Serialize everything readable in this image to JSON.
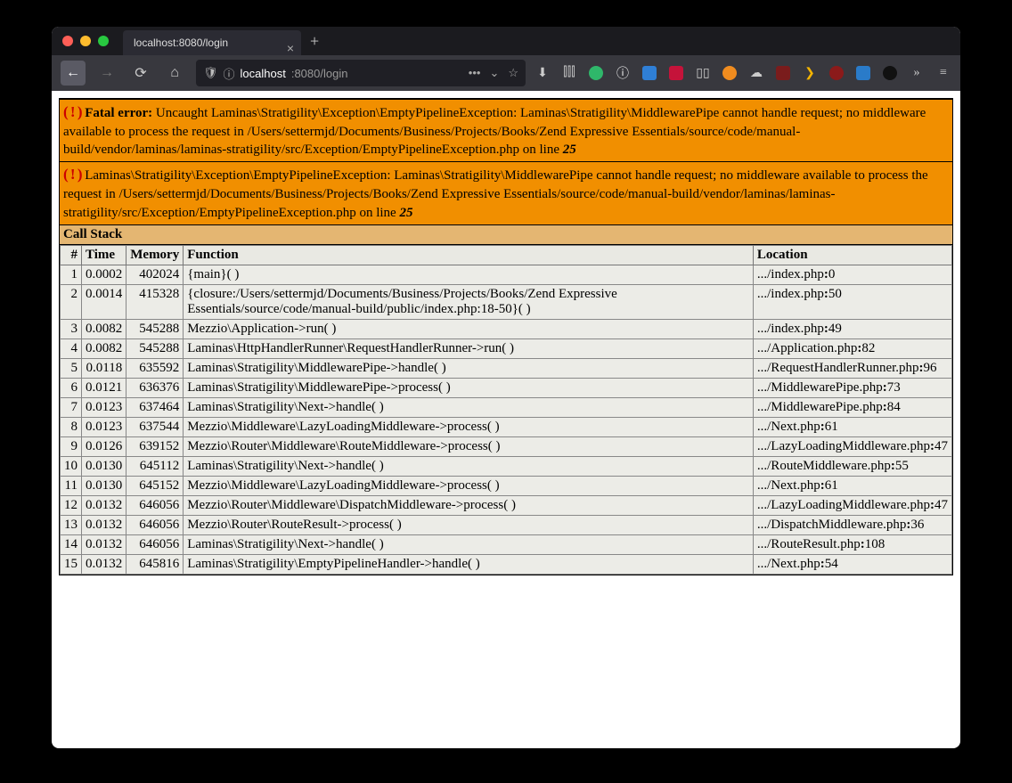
{
  "browser": {
    "tab_title": "localhost:8080/login",
    "url_display_host": "localhost",
    "url_display_rest": ":8080/login",
    "shield_glyph": "🛡",
    "info_glyph": "ⓘ",
    "dots_glyph": "•••",
    "pocket_glyph": "⌄",
    "star_glyph": "☆",
    "download_glyph": "⬇",
    "library_glyph": "⫿⫿⫿",
    "menu_glyph": "≡",
    "overflow_glyph": "»"
  },
  "colors": {
    "error_bg": "#f18f00",
    "callstack_title_bg": "#e4b672",
    "table_row_bg": "#ecece7",
    "table_header_bg": "#e9e9e3",
    "icon_red": "#cc0000"
  },
  "error1": {
    "icon": "( ! )",
    "prefix": "Fatal error:",
    "text_a": " Uncaught Laminas\\Stratigility\\Exception\\EmptyPipelineException: Laminas\\Stratigility\\MiddlewarePipe cannot handle request; no middleware available to process the request in /Users/settermjd/Documents/Business/Projects/Books/Zend Expressive Essentials/source/code/manual-build/vendor/laminas/laminas-stratigility/src/Exception/EmptyPipelineException.php on line ",
    "line": "25"
  },
  "error2": {
    "icon": "( ! )",
    "text_a": " Laminas\\Stratigility\\Exception\\EmptyPipelineException: Laminas\\Stratigility\\MiddlewarePipe cannot handle request; no middleware available to process the request in /Users/settermjd/Documents/Business/Projects/Books/Zend Expressive Essentials/source/code/manual-build/vendor/laminas/laminas-stratigility/src/Exception/EmptyPipelineException.php on line ",
    "line": "25"
  },
  "callstack": {
    "title": "Call Stack",
    "headers": [
      "#",
      "Time",
      "Memory",
      "Function",
      "Location"
    ],
    "rows": [
      {
        "i": "1",
        "t": "0.0002",
        "m": "402024",
        "fn": "{main}( )",
        "loc": ".../index.php",
        "ln": "0"
      },
      {
        "i": "2",
        "t": "0.0014",
        "m": "415328",
        "fn": "{closure:/Users/settermjd/Documents/Business/Projects/Books/Zend Expressive Essentials/source/code/manual-build/public/index.php:18-50}( )",
        "loc": ".../index.php",
        "ln": "50"
      },
      {
        "i": "3",
        "t": "0.0082",
        "m": "545288",
        "fn": "Mezzio\\Application->run( )",
        "loc": ".../index.php",
        "ln": "49"
      },
      {
        "i": "4",
        "t": "0.0082",
        "m": "545288",
        "fn": "Laminas\\HttpHandlerRunner\\RequestHandlerRunner->run( )",
        "loc": ".../Application.php",
        "ln": "82"
      },
      {
        "i": "5",
        "t": "0.0118",
        "m": "635592",
        "fn": "Laminas\\Stratigility\\MiddlewarePipe->handle( )",
        "loc": ".../RequestHandlerRunner.php",
        "ln": "96"
      },
      {
        "i": "6",
        "t": "0.0121",
        "m": "636376",
        "fn": "Laminas\\Stratigility\\MiddlewarePipe->process( )",
        "loc": ".../MiddlewarePipe.php",
        "ln": "73"
      },
      {
        "i": "7",
        "t": "0.0123",
        "m": "637464",
        "fn": "Laminas\\Stratigility\\Next->handle( )",
        "loc": ".../MiddlewarePipe.php",
        "ln": "84"
      },
      {
        "i": "8",
        "t": "0.0123",
        "m": "637544",
        "fn": "Mezzio\\Middleware\\LazyLoadingMiddleware->process( )",
        "loc": ".../Next.php",
        "ln": "61"
      },
      {
        "i": "9",
        "t": "0.0126",
        "m": "639152",
        "fn": "Mezzio\\Router\\Middleware\\RouteMiddleware->process( )",
        "loc": ".../LazyLoadingMiddleware.php",
        "ln": "47"
      },
      {
        "i": "10",
        "t": "0.0130",
        "m": "645112",
        "fn": "Laminas\\Stratigility\\Next->handle( )",
        "loc": ".../RouteMiddleware.php",
        "ln": "55"
      },
      {
        "i": "11",
        "t": "0.0130",
        "m": "645152",
        "fn": "Mezzio\\Middleware\\LazyLoadingMiddleware->process( )",
        "loc": ".../Next.php",
        "ln": "61"
      },
      {
        "i": "12",
        "t": "0.0132",
        "m": "646056",
        "fn": "Mezzio\\Router\\Middleware\\DispatchMiddleware->process( )",
        "loc": ".../LazyLoadingMiddleware.php",
        "ln": "47"
      },
      {
        "i": "13",
        "t": "0.0132",
        "m": "646056",
        "fn": "Mezzio\\Router\\RouteResult->process( )",
        "loc": ".../DispatchMiddleware.php",
        "ln": "36"
      },
      {
        "i": "14",
        "t": "0.0132",
        "m": "646056",
        "fn": "Laminas\\Stratigility\\Next->handle( )",
        "loc": ".../RouteResult.php",
        "ln": "108"
      },
      {
        "i": "15",
        "t": "0.0132",
        "m": "645816",
        "fn": "Laminas\\Stratigility\\EmptyPipelineHandler->handle( )",
        "loc": ".../Next.php",
        "ln": "54"
      }
    ]
  }
}
